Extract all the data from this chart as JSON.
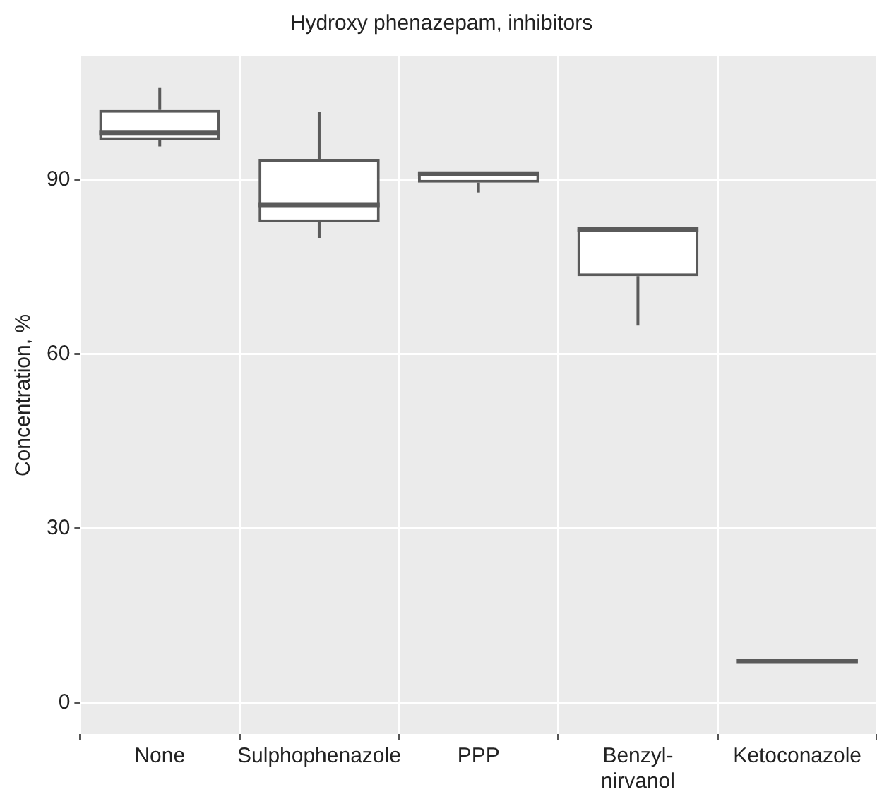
{
  "chart_data": {
    "type": "box",
    "title": "Hydroxy phenazepam, inhibitors",
    "ylabel": "Concentration, %",
    "categories": [
      "None",
      "Sulphophenazole",
      "PPP",
      "Benzyl-\nnirvanol",
      "Ketoconazole"
    ],
    "color": "#5a5a5a",
    "boxes": [
      {
        "low": 95.7,
        "q1": 96.8,
        "median": 98.1,
        "q3": 102,
        "high": 105.9
      },
      {
        "low": 80,
        "q1": 82.7,
        "median": 85.7,
        "q3": 93.6,
        "high": 101.6
      },
      {
        "low": 87.8,
        "q1": 89.5,
        "median": 91,
        "q3": 91.3,
        "high": 91.3
      },
      {
        "low": 64.9,
        "q1": 73.4,
        "median": 81.5,
        "q3": 81.6,
        "high": 81.6
      },
      {
        "low": 7.1,
        "q1": 7.1,
        "median": 7.1,
        "q3": 7.1,
        "high": 7.1
      }
    ],
    "ylim": [
      -5.4,
      111.2
    ],
    "yticks": [
      0,
      30,
      60,
      90
    ],
    "grid": true
  }
}
